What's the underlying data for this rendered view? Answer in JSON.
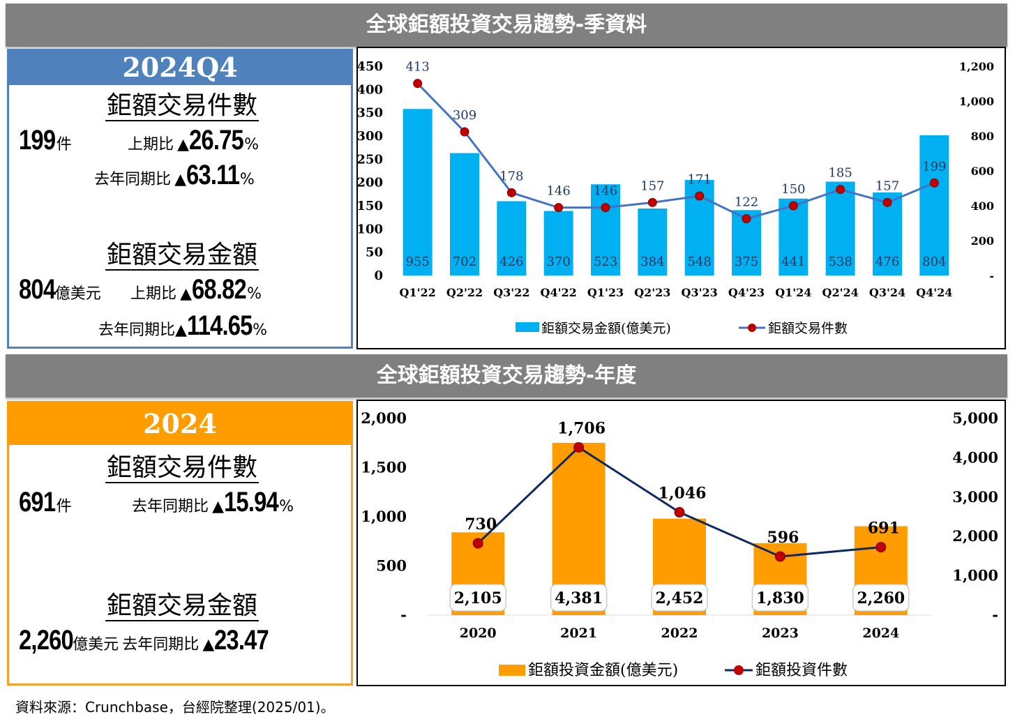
{
  "quarterly": {
    "banner": "全球鉅額投資交易趨勢-季資料",
    "period": "2024Q4",
    "count_title": "鉅額交易件數",
    "count_value": "199",
    "count_unit": "件",
    "qoq_label": "上期比",
    "qoq_arrow": "▲",
    "count_qoq": "26.75",
    "pct": "%",
    "yoy_label": "去年同期比",
    "yoy_arrow": "▲",
    "count_yoy": "63.11",
    "amount_title": "鉅額交易金額",
    "amount_value": "804",
    "amount_unit": "億美元",
    "amount_qoq": "68.82",
    "amount_yoy": "114.65"
  },
  "annual": {
    "banner": "全球鉅額投資交易趨勢-年度",
    "period": "2024",
    "count_title": "鉅額交易件數",
    "count_value": "691",
    "count_unit": "件",
    "yoy_label": "去年同期比",
    "yoy_arrow": "▲",
    "count_yoy": "15.94",
    "pct": "%",
    "amount_title": "鉅額交易金額",
    "amount_value": "2,260",
    "amount_unit": "億美元",
    "amount_yoy": "23.47"
  },
  "source": "資料來源：Crunchbase，台經院整理(2025/01)。",
  "chart_data": [
    {
      "type": "bar",
      "categories": [
        "Q1'22",
        "Q2'22",
        "Q3'22",
        "Q4'22",
        "Q1'23",
        "Q2'23",
        "Q3'23",
        "Q4'23",
        "Q1'24",
        "Q2'24",
        "Q3'24",
        "Q4'24"
      ],
      "series": [
        {
          "name": "鉅額交易金額(億美元)",
          "axis": "right",
          "values": [
            955,
            702,
            426,
            370,
            523,
            384,
            548,
            375,
            441,
            538,
            476,
            804
          ],
          "color": "#00b0f0"
        },
        {
          "name": "鉅額交易件數",
          "axis": "left",
          "type": "line",
          "values": [
            413,
            309,
            178,
            146,
            146,
            157,
            171,
            122,
            150,
            185,
            157,
            199
          ],
          "color": "#4472c4",
          "marker_color": "#c00000"
        }
      ],
      "left_axis": {
        "min": 0,
        "max": 450,
        "ticks": [
          "0",
          "50",
          "100",
          "150",
          "200",
          "250",
          "300",
          "350",
          "400",
          "450"
        ]
      },
      "right_axis": {
        "min": 0,
        "max": 1200,
        "ticks": [
          "-",
          "200",
          "400",
          "600",
          "800",
          "1,000",
          "1,200"
        ]
      },
      "legend": "bottom"
    },
    {
      "type": "bar",
      "categories": [
        "2020",
        "2021",
        "2022",
        "2023",
        "2024"
      ],
      "series": [
        {
          "name": "鉅額投資金額(億美元)",
          "axis": "right",
          "values": [
            2105,
            4381,
            2452,
            1830,
            2260
          ],
          "labels": [
            "2,105",
            "4,381",
            "2,452",
            "1,830",
            "2,260"
          ],
          "color": "#ff9c00"
        },
        {
          "name": "鉅額投資件數",
          "axis": "left",
          "type": "line",
          "values": [
            730,
            1706,
            1046,
            596,
            691
          ],
          "labels": [
            "730",
            "1,706",
            "1,046",
            "596",
            "691"
          ],
          "color": "#0f2862",
          "marker_color": "#c00000"
        }
      ],
      "left_axis": {
        "min": 0,
        "max": 2000,
        "ticks": [
          "-",
          "500",
          "1,000",
          "1,500",
          "2,000"
        ]
      },
      "right_axis": {
        "min": 0,
        "max": 5000,
        "ticks": [
          "-",
          "1,000",
          "2,000",
          "3,000",
          "4,000",
          "5,000"
        ]
      },
      "legend": "bottom"
    }
  ]
}
